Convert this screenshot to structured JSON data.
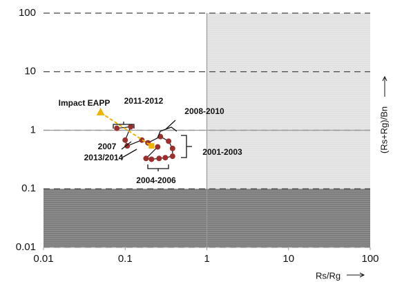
{
  "chart_data": {
    "type": "scatter",
    "xlim": [
      0.01,
      100
    ],
    "ylim": [
      0.01,
      100
    ],
    "xticks": [
      0.01,
      0.1,
      1,
      10,
      100
    ],
    "yticks": [
      0.01,
      0.1,
      1,
      10,
      100
    ],
    "xscale": "log",
    "yscale": "log",
    "grid": true,
    "x_label": "Rs/Rg",
    "y_label": "(Rs+Rg)/Bn",
    "hlines": [
      1
    ],
    "vlines": [
      1
    ],
    "regions": [
      {
        "xlim": [
          1,
          100
        ],
        "ylim": [
          0.1,
          100
        ],
        "color": "#e2e2e2"
      },
      {
        "xlim": [
          0.01,
          100
        ],
        "ylim": [
          0.01,
          0.1
        ],
        "color": "#7c7c7c"
      }
    ],
    "series": [
      {
        "color": "#9b2f2c",
        "line_color": "#111111",
        "x": [
          0.079,
          0.117,
          0.1,
          0.106,
          0.16,
          0.19,
          0.27,
          0.34,
          0.38,
          0.38,
          0.31,
          0.26,
          0.21,
          0.18,
          0.25
        ],
        "values": [
          1.08,
          1.15,
          0.68,
          0.54,
          0.68,
          0.61,
          0.78,
          0.65,
          0.49,
          0.36,
          0.34,
          0.33,
          0.32,
          0.33,
          0.52
        ]
      },
      {
        "color": "#f0b400",
        "x": [
          0.05,
          0.21
        ],
        "values": [
          2,
          0.54
        ]
      }
    ],
    "annotations": [
      "Impact EAPP",
      "2011-2012",
      "2008-2010",
      "2007",
      "2013/2014",
      "2001-2003",
      "2004-2006"
    ]
  }
}
